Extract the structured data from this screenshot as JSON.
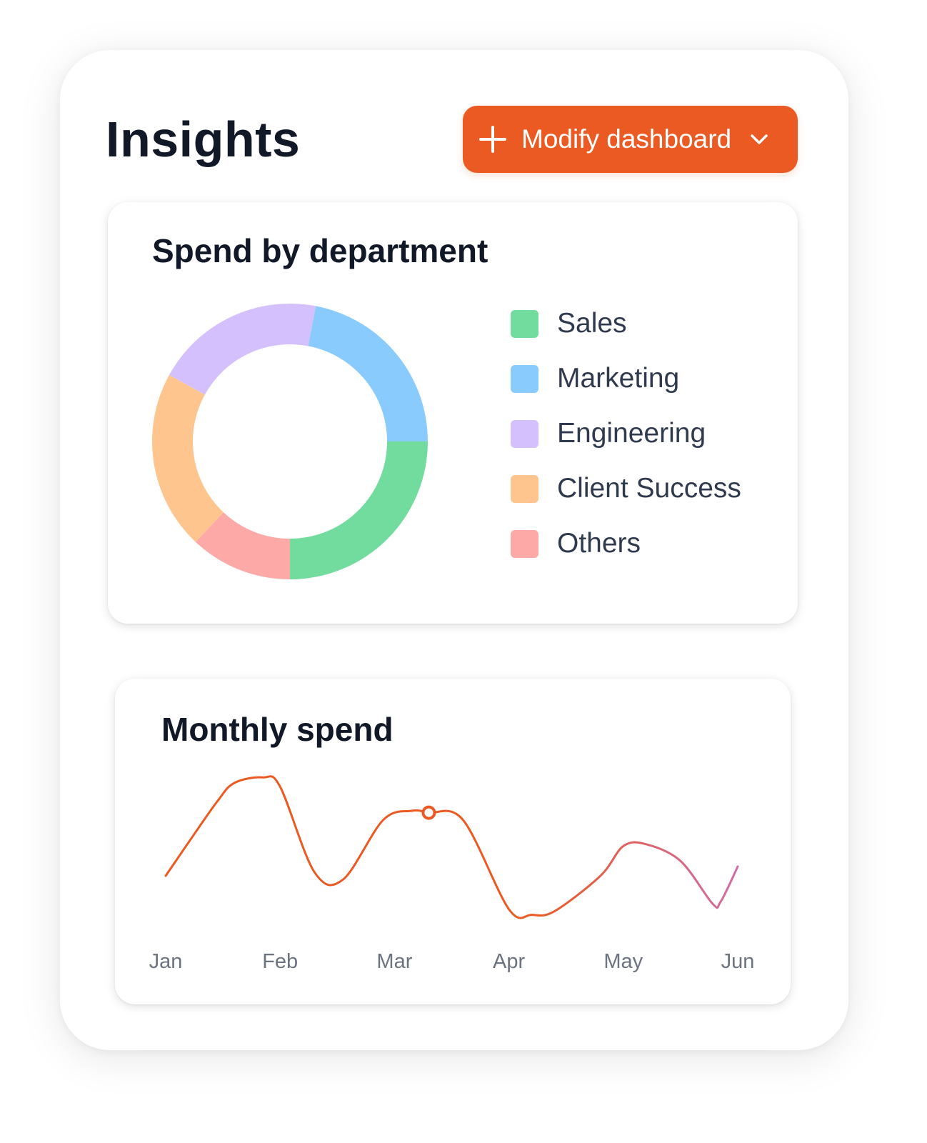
{
  "page": {
    "title": "Insights"
  },
  "toolbar": {
    "modify_label": "Modify dashboard",
    "modify_icon": "plus-icon",
    "dropdown_icon": "chevron-down-icon"
  },
  "colors": {
    "accent": "#ea5a22",
    "sales": "#71dc9d",
    "marketing": "#89cbfd",
    "engineering": "#d4c0fc",
    "client_success": "#fec68e",
    "others": "#fda9a8"
  },
  "spend_card": {
    "title": "Spend by department",
    "legend": [
      {
        "label": "Sales",
        "color": "#71dc9d"
      },
      {
        "label": "Marketing",
        "color": "#89cbfd"
      },
      {
        "label": "Engineering",
        "color": "#d4c0fc"
      },
      {
        "label": "Client Success",
        "color": "#fec68e"
      },
      {
        "label": "Others",
        "color": "#fda9a8"
      }
    ]
  },
  "monthly_card": {
    "title": "Monthly spend"
  },
  "chart_data": [
    {
      "type": "pie",
      "title": "Spend by department",
      "categories": [
        "Sales",
        "Marketing",
        "Engineering",
        "Client Success",
        "Others"
      ],
      "values": [
        25,
        22,
        20,
        21,
        12
      ],
      "colors": [
        "#71dc9d",
        "#89cbfd",
        "#d4c0fc",
        "#fec68e",
        "#fda9a8"
      ],
      "donut": true,
      "legend": "right"
    },
    {
      "type": "line",
      "title": "Monthly spend",
      "categories": [
        "Jan",
        "Feb",
        "Mar",
        "Apr",
        "May",
        "Jun"
      ],
      "x": [
        0,
        0.2,
        0.45,
        0.6,
        0.85,
        1.0,
        1.3,
        1.55,
        1.9,
        2.15,
        2.3,
        2.6,
        3.0,
        3.2,
        3.4,
        3.8,
        4.0,
        4.2,
        4.5,
        4.78,
        4.85,
        5.0
      ],
      "values": [
        40,
        58,
        80,
        90,
        93,
        88,
        42,
        38,
        70,
        75,
        74,
        70,
        22,
        19,
        21,
        40,
        56,
        57,
        48,
        25,
        26,
        45
      ],
      "ylim": [
        0,
        100
      ],
      "highlight_index": 10,
      "grid": false,
      "colors": {
        "start": "#ea5a22",
        "end": "#c971c8"
      }
    }
  ]
}
